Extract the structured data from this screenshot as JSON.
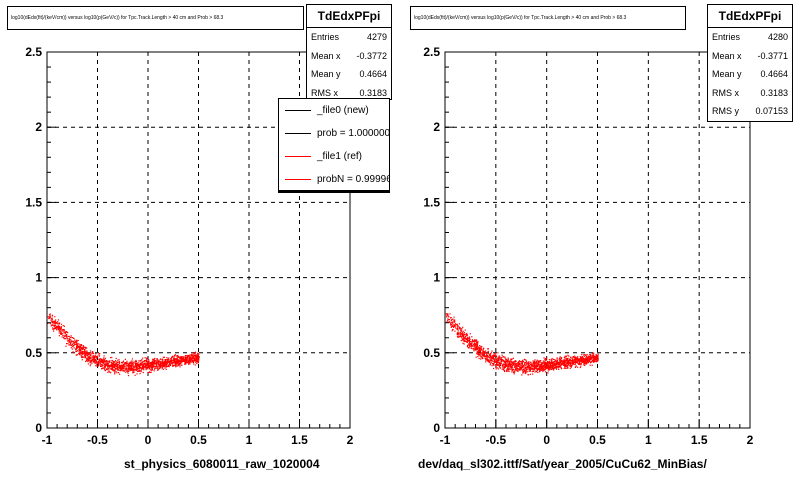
{
  "charts": [
    {
      "title": "log10(dEdx(fit)/(keV/cm)) versus log10(p(GeV/c)) for Tpc.Track.Length > 40 cm and Prob > 68.3",
      "xlabel": "st_physics_6080011_raw_1020004",
      "stats": {
        "name": "TdEdxPFpi",
        "rows": [
          {
            "label": "Entries",
            "value": "4279"
          },
          {
            "label": "Mean x",
            "value": "-0.3772"
          },
          {
            "label": "Mean y",
            "value": "0.4664"
          },
          {
            "label": "RMS x",
            "value": "0.3183"
          }
        ]
      },
      "legend": [
        {
          "label": "_file0 (new)",
          "color": "#000000"
        },
        {
          "label": "prob = 1.000000",
          "color": "#000000"
        },
        {
          "label": "_file1 (ref)",
          "color": "#ff0000"
        },
        {
          "label": "probN = 0.999960",
          "color": "#ff0000"
        }
      ]
    },
    {
      "title": "log10(dEdx(fit)/(keV/cm)) versus log10(p(GeV/c)) for Tpc.Track.Length > 40 cm and Prob > 68.3",
      "xlabel": "dev/daq_sl302.ittf/Sat/year_2005/CuCu62_MinBias/",
      "stats": {
        "name": "TdEdxPFpi",
        "rows": [
          {
            "label": "Entries",
            "value": "4280"
          },
          {
            "label": "Mean x",
            "value": "-0.3771"
          },
          {
            "label": "Mean y",
            "value": "0.4664"
          },
          {
            "label": "RMS x",
            "value": "0.3183"
          },
          {
            "label": "RMS y",
            "value": "0.07153"
          }
        ]
      }
    }
  ],
  "chart_data": [
    {
      "type": "scatter",
      "xlim": [
        -1,
        2
      ],
      "ylim": [
        0,
        2.5
      ],
      "x_ticks": [
        "-1",
        "-0.5",
        "0",
        "0.5",
        "1",
        "1.5",
        "2"
      ],
      "y_ticks": [
        "0",
        "0.5",
        "1",
        "1.5",
        "2",
        "2.5"
      ],
      "grid": true,
      "marker_color": "#ff0000",
      "band": {
        "x": [
          -1.0,
          -0.8,
          -0.6,
          -0.4,
          -0.2,
          0.0,
          0.2,
          0.4,
          0.5
        ],
        "y": [
          0.75,
          0.6,
          0.48,
          0.42,
          0.41,
          0.42,
          0.44,
          0.46,
          0.47
        ]
      }
    },
    {
      "type": "scatter",
      "xlim": [
        -1,
        2
      ],
      "ylim": [
        0,
        2.5
      ],
      "x_ticks": [
        "-1",
        "-0.5",
        "0",
        "0.5",
        "1",
        "1.5",
        "2"
      ],
      "y_ticks": [
        "0",
        "0.5",
        "1",
        "1.5",
        "2",
        "2.5"
      ],
      "grid": true,
      "marker_color": "#ff0000",
      "band": {
        "x": [
          -1.0,
          -0.8,
          -0.6,
          -0.4,
          -0.2,
          0.0,
          0.2,
          0.4,
          0.5
        ],
        "y": [
          0.75,
          0.6,
          0.48,
          0.42,
          0.41,
          0.42,
          0.44,
          0.46,
          0.47
        ]
      }
    }
  ]
}
